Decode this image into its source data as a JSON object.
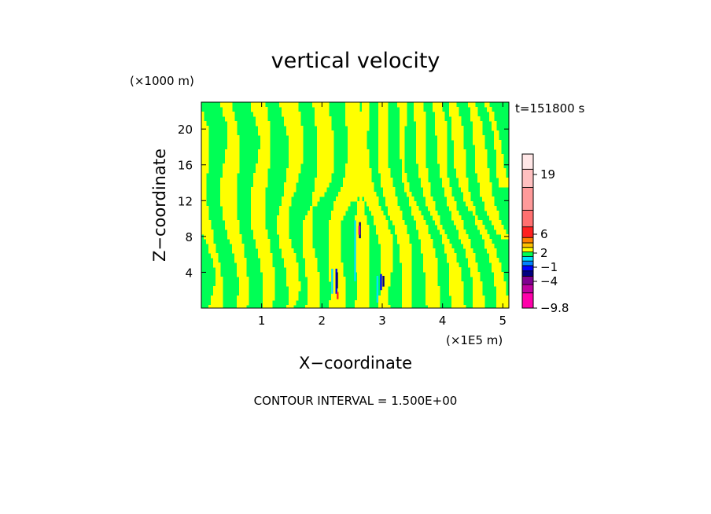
{
  "chart_data": {
    "type": "heatmap",
    "title": "vertical velocity",
    "xlabel": "X−coordinate",
    "ylabel": "Z−coordinate",
    "x_unit": "(×1E5 m)",
    "y_unit": "(×1000 m)",
    "time_label": "t=151800 s",
    "footer": "CONTOUR INTERVAL = 1.500E+00",
    "xlim": [
      0,
      5.1
    ],
    "ylim": [
      0,
      23
    ],
    "x_ticks": [
      "1",
      "2",
      "3",
      "4",
      "5"
    ],
    "y_ticks": [
      "4",
      "8",
      "12",
      "16",
      "20"
    ],
    "grid": false,
    "field": {
      "dominant_colors": [
        "#00ff55",
        "#ffff00"
      ],
      "description_values": "alternating positive/negative vertical velocity bands"
    },
    "colorbar": {
      "labels": [
        "19",
        "6",
        "2",
        "−1",
        "−4",
        "−9.8"
      ],
      "label_values": [
        19,
        6,
        2,
        -1,
        -4,
        -9.8
      ],
      "levels": [
        {
          "color": "#ff00aa"
        },
        {
          "color": "#c000a0"
        },
        {
          "color": "#800090"
        },
        {
          "color": "#000080"
        },
        {
          "color": "#0000ff"
        },
        {
          "color": "#0080ff"
        },
        {
          "color": "#00e0ff"
        },
        {
          "color": "#00ff55"
        },
        {
          "color": "#ffff00"
        },
        {
          "color": "#ffc000"
        },
        {
          "color": "#ff8000"
        },
        {
          "color": "#ff2020"
        },
        {
          "color": "#ff7070"
        },
        {
          "color": "#ff9a9a"
        },
        {
          "color": "#ffc0c0"
        },
        {
          "color": "#ffe6e6"
        }
      ]
    }
  }
}
